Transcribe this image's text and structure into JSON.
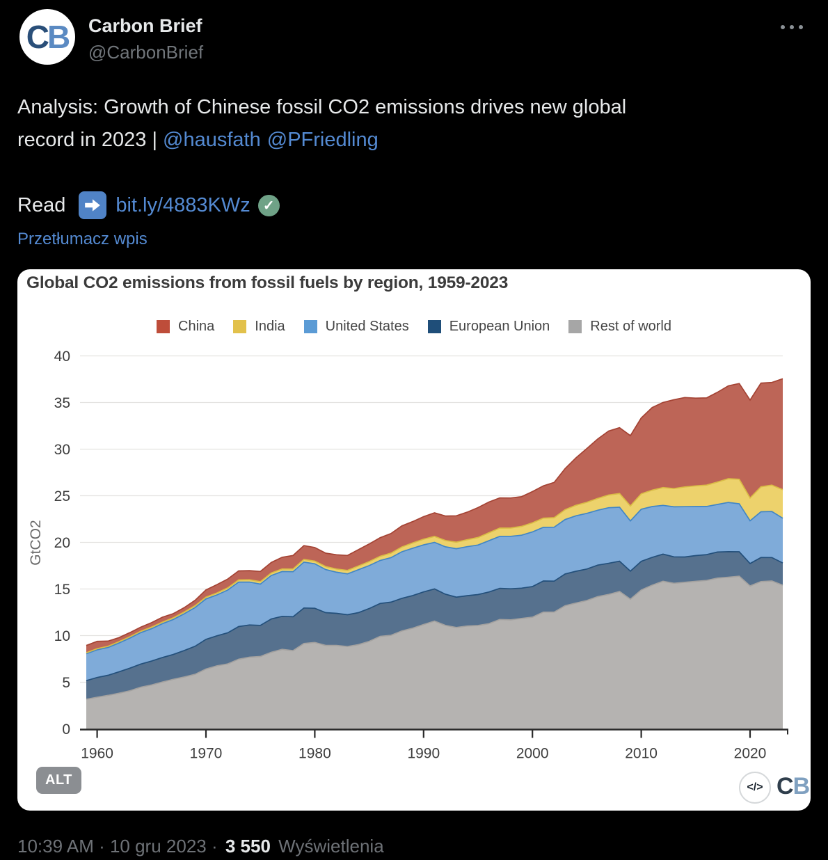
{
  "header": {
    "avatar": {
      "letter_c": "C",
      "letter_b": "B",
      "c_color": "#2a4f79",
      "b_color": "#5b8ac2"
    },
    "display_name": "Carbon Brief",
    "handle": "@CarbonBrief"
  },
  "tweet": {
    "line1": "Analysis: Growth of Chinese fossil CO2 emissions drives new global",
    "line2_prefix": "record in 2023 | ",
    "mention1": "@hausfath",
    "mention2": "@PFriedling"
  },
  "read": {
    "label": "Read",
    "link": "bit.ly/4883KWz"
  },
  "translate": {
    "label": "Przetłumacz wpis"
  },
  "icons": {
    "more_menu": "three-dots-horizontal",
    "arrow_right_emoji": "blue square with white right arrow",
    "check_emoji": "green circle with white check",
    "check_glyph": "✓",
    "embed_glyph": "</>"
  },
  "image": {
    "alt_badge": "ALT",
    "watermark": {
      "letter_c": "C",
      "letter_b": "B",
      "c_color": "#2f3e4c",
      "b_color": "#7fa0c0"
    }
  },
  "footer": {
    "datetime": "10:39 AM · 10 gru 2023 ·",
    "views_count": "3 550",
    "views_label": "Wyświetlenia"
  },
  "colors": {
    "background": "#000000",
    "text_primary": "#e7e9ea",
    "text_secondary": "#71767b",
    "link_blue": "#548ad2",
    "card_background": "#ffffff"
  },
  "chart_data": {
    "type": "area",
    "stacked": true,
    "title": "Global CO2 emissions from fossil fuels by region, 1959-2023",
    "xlabel": "",
    "ylabel": "GtCO2",
    "ylim": [
      0,
      40
    ],
    "yticks": [
      0,
      5,
      10,
      15,
      20,
      25,
      30,
      35,
      40
    ],
    "xticks": [
      1960,
      1970,
      1980,
      1990,
      2000,
      2010,
      2020
    ],
    "grid": true,
    "legend_position": "top-center",
    "unit": "GtCO2",
    "years": [
      1959,
      1960,
      1961,
      1962,
      1963,
      1964,
      1965,
      1966,
      1967,
      1968,
      1969,
      1970,
      1971,
      1972,
      1973,
      1974,
      1975,
      1976,
      1977,
      1978,
      1979,
      1980,
      1981,
      1982,
      1983,
      1984,
      1985,
      1986,
      1987,
      1988,
      1989,
      1990,
      1991,
      1992,
      1993,
      1994,
      1995,
      1996,
      1997,
      1998,
      1999,
      2000,
      2001,
      2002,
      2003,
      2004,
      2005,
      2006,
      2007,
      2008,
      2009,
      2010,
      2011,
      2012,
      2013,
      2014,
      2015,
      2016,
      2017,
      2018,
      2019,
      2020,
      2021,
      2022,
      2023
    ],
    "stack_order_bottom_to_top": [
      "Rest of world",
      "European Union",
      "United States",
      "India",
      "China"
    ],
    "legend": [
      {
        "label": "China",
        "color": "#be4d3a"
      },
      {
        "label": "India",
        "color": "#e2c14b"
      },
      {
        "label": "United States",
        "color": "#5b9bd5"
      },
      {
        "label": "European Union",
        "color": "#1f4e79"
      },
      {
        "label": "Rest of world",
        "color": "#a6a6a6"
      }
    ],
    "series": [
      {
        "name": "China",
        "color": "#bd6557",
        "edge": "#a44334",
        "values": [
          0.78,
          0.79,
          0.55,
          0.44,
          0.44,
          0.44,
          0.48,
          0.53,
          0.45,
          0.47,
          0.58,
          0.77,
          0.89,
          0.95,
          0.97,
          0.98,
          1.1,
          1.13,
          1.25,
          1.46,
          1.49,
          1.46,
          1.44,
          1.53,
          1.61,
          1.76,
          1.89,
          1.99,
          2.11,
          2.26,
          2.29,
          2.42,
          2.53,
          2.63,
          2.83,
          2.96,
          3.21,
          3.3,
          3.24,
          3.22,
          3.18,
          3.35,
          3.46,
          3.78,
          4.41,
          5.09,
          5.77,
          6.37,
          6.86,
          7.06,
          7.55,
          8.13,
          8.86,
          9.13,
          9.53,
          9.59,
          9.41,
          9.35,
          9.63,
          9.96,
          10.27,
          10.5,
          11.12,
          11.01,
          11.9
        ]
      },
      {
        "name": "India",
        "color": "#edd26c",
        "edge": "#d9bc45",
        "values": [
          0.11,
          0.12,
          0.13,
          0.14,
          0.15,
          0.15,
          0.17,
          0.17,
          0.18,
          0.19,
          0.2,
          0.2,
          0.21,
          0.23,
          0.23,
          0.25,
          0.26,
          0.27,
          0.28,
          0.28,
          0.29,
          0.29,
          0.32,
          0.34,
          0.37,
          0.39,
          0.43,
          0.45,
          0.48,
          0.52,
          0.57,
          0.61,
          0.64,
          0.68,
          0.7,
          0.74,
          0.8,
          0.85,
          0.88,
          0.89,
          0.95,
          0.98,
          0.99,
          1.02,
          1.06,
          1.13,
          1.19,
          1.27,
          1.36,
          1.47,
          1.6,
          1.66,
          1.76,
          1.91,
          1.96,
          2.12,
          2.22,
          2.29,
          2.4,
          2.55,
          2.63,
          2.45,
          2.68,
          2.83,
          3.06
        ]
      },
      {
        "name": "United States",
        "color": "#7fabd9",
        "edge": "#4186c6",
        "values": [
          2.88,
          2.97,
          2.98,
          3.09,
          3.22,
          3.36,
          3.47,
          3.63,
          3.75,
          3.94,
          4.15,
          4.33,
          4.38,
          4.59,
          4.77,
          4.6,
          4.42,
          4.67,
          4.8,
          4.84,
          4.92,
          4.77,
          4.62,
          4.41,
          4.38,
          4.61,
          4.61,
          4.61,
          4.77,
          4.99,
          5.07,
          5.04,
          4.99,
          5.08,
          5.19,
          5.26,
          5.32,
          5.5,
          5.58,
          5.63,
          5.68,
          5.86,
          5.75,
          5.79,
          5.84,
          5.95,
          5.97,
          5.89,
          5.97,
          5.79,
          5.39,
          5.58,
          5.45,
          5.23,
          5.36,
          5.4,
          5.26,
          5.16,
          5.11,
          5.28,
          5.15,
          4.58,
          4.9,
          4.94,
          4.8
        ]
      },
      {
        "name": "European Union",
        "color": "#56718e",
        "edge": "#24507b",
        "values": [
          2.0,
          2.12,
          2.16,
          2.29,
          2.43,
          2.49,
          2.56,
          2.63,
          2.67,
          2.83,
          3.01,
          3.18,
          3.22,
          3.34,
          3.5,
          3.45,
          3.34,
          3.56,
          3.55,
          3.63,
          3.8,
          3.66,
          3.51,
          3.44,
          3.41,
          3.43,
          3.52,
          3.53,
          3.56,
          3.5,
          3.5,
          3.5,
          3.45,
          3.34,
          3.26,
          3.25,
          3.32,
          3.4,
          3.34,
          3.33,
          3.25,
          3.28,
          3.34,
          3.32,
          3.4,
          3.41,
          3.38,
          3.38,
          3.33,
          3.25,
          3.01,
          3.08,
          2.98,
          2.91,
          2.84,
          2.71,
          2.76,
          2.77,
          2.79,
          2.74,
          2.62,
          2.4,
          2.58,
          2.51,
          2.39
        ]
      },
      {
        "name": "Rest of world",
        "color": "#b5b3b1",
        "edge": "#a3a19f",
        "values": [
          3.17,
          3.39,
          3.59,
          3.82,
          4.08,
          4.46,
          4.71,
          5.02,
          5.31,
          5.57,
          5.85,
          6.42,
          6.76,
          6.96,
          7.47,
          7.69,
          7.76,
          8.22,
          8.52,
          8.39,
          9.16,
          9.27,
          8.95,
          8.95,
          8.83,
          9.03,
          9.38,
          9.92,
          10.03,
          10.5,
          10.8,
          11.19,
          11.56,
          11.1,
          10.87,
          11.03,
          11.08,
          11.28,
          11.73,
          11.69,
          11.84,
          11.98,
          12.52,
          12.52,
          13.21,
          13.49,
          13.76,
          14.18,
          14.42,
          14.73,
          13.9,
          14.89,
          15.41,
          15.83,
          15.61,
          15.72,
          15.82,
          15.92,
          16.17,
          16.26,
          16.37,
          15.33,
          15.8,
          15.86,
          15.4
        ]
      }
    ]
  }
}
